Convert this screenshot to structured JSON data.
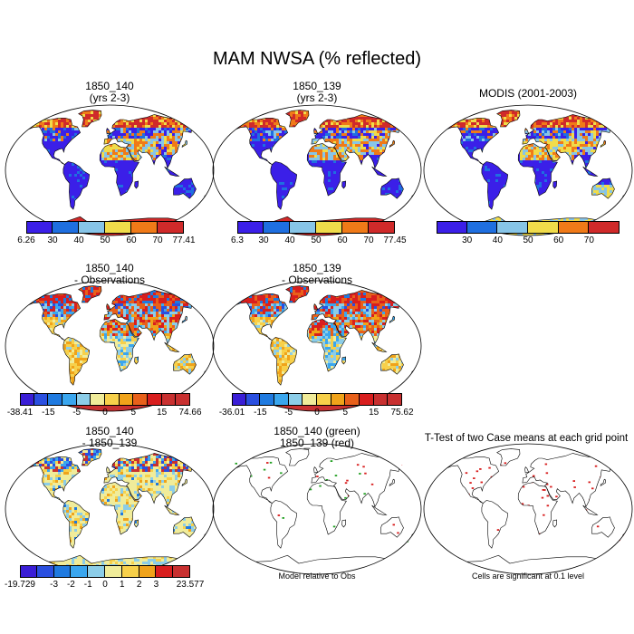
{
  "title": "MAM NWSA (% reflected)",
  "colors": {
    "abs": [
      "#3b1fe8",
      "#1f6fe0",
      "#87c5e8",
      "#f0dc4a",
      "#f07a18",
      "#d02a2a"
    ],
    "diff": [
      "#3a1ed6",
      "#2a4fe0",
      "#1f7ae0",
      "#3aa6ee",
      "#8ccde8",
      "#f0ec9a",
      "#f7d04a",
      "#f0a31a",
      "#e8601a",
      "#d81e1e",
      "#c83030"
    ],
    "diff3": [
      "#3a1ed6",
      "#2a4fe0",
      "#1f7ae0",
      "#3aa6ee",
      "#8ccde8",
      "#f0ec9a",
      "#f7d04a",
      "#f0a31a",
      "#d81e1e",
      "#c83030"
    ]
  },
  "chart_data": [
    {
      "type": "heatmap",
      "id": "p1",
      "title_line1": "1850_140",
      "title_line2": "(yrs 2-3)",
      "colorbar_labels": [
        "6.26",
        "30",
        "40",
        "50",
        "60",
        "70",
        "77.41"
      ]
    },
    {
      "type": "heatmap",
      "id": "p2",
      "title_line1": "1850_139",
      "title_line2": "(yrs 2-3)",
      "colorbar_labels": [
        "6.3",
        "30",
        "40",
        "50",
        "60",
        "70",
        "77.45"
      ]
    },
    {
      "type": "heatmap",
      "id": "p3",
      "title_line1": "MODIS (2001-2003)",
      "title_line2": "",
      "colorbar_labels": [
        "",
        "30",
        "40",
        "50",
        "60",
        "70",
        ""
      ]
    },
    {
      "type": "heatmap",
      "id": "p4",
      "title_line1": "1850_140",
      "title_line2": "- Observations",
      "colorbar_labels": [
        "-38.41",
        "",
        "-15",
        "",
        "-5",
        "",
        "0",
        "",
        "5",
        "",
        "15",
        "",
        "74.66"
      ]
    },
    {
      "type": "heatmap",
      "id": "p5",
      "title_line1": "1850_139",
      "title_line2": "- Observations",
      "colorbar_labels": [
        "-36.01",
        "",
        "-15",
        "",
        "-5",
        "",
        "0",
        "",
        "5",
        "",
        "15",
        "",
        "75.62"
      ]
    },
    {
      "type": "heatmap",
      "id": "p6",
      "title_line1": "1850_140",
      "title_line2": "- 1850_139",
      "colorbar_labels": [
        "-19.729",
        "",
        "-3",
        "-2",
        "-1",
        "0",
        "1",
        "2",
        "3",
        "",
        "23.577"
      ]
    },
    {
      "type": "heatmap",
      "id": "p7",
      "title_line1": "1850_140 (green)",
      "title_line2": "1850_139 (red)",
      "colorbar_labels": []
    },
    {
      "type": "heatmap",
      "id": "p8",
      "title_line1": "T-Test of two Case means at each grid point",
      "title_line2": "",
      "colorbar_labels": []
    }
  ],
  "notes": {
    "model_relative": "Model relative to Obs",
    "significance": "Cells are significant at 0.1 level"
  }
}
